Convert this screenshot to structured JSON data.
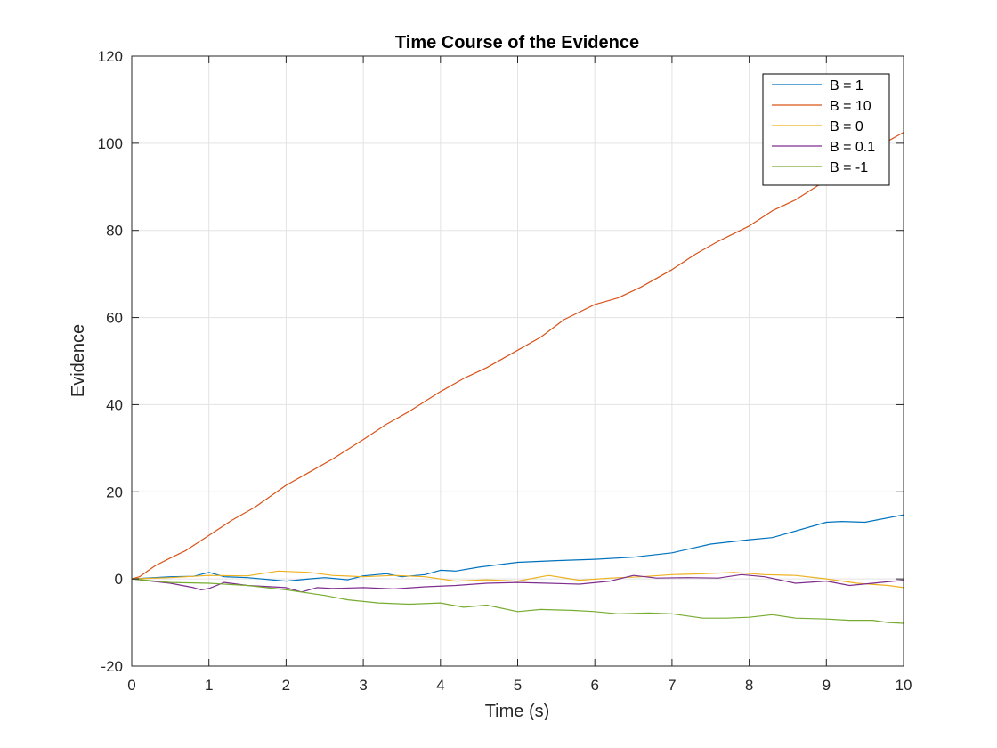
{
  "chart_data": {
    "type": "line",
    "title": "Time Course of the Evidence",
    "xlabel": "Time (s)",
    "ylabel": "Evidence",
    "xlim": [
      0,
      10
    ],
    "ylim": [
      -20,
      120
    ],
    "xticks": [
      0,
      1,
      2,
      3,
      4,
      5,
      6,
      7,
      8,
      9,
      10
    ],
    "yticks": [
      -20,
      0,
      20,
      40,
      60,
      80,
      100,
      120
    ],
    "grid": true,
    "legend_position": "top-right",
    "series": [
      {
        "name": "B = 1",
        "color": "#0072BD",
        "x": [
          0,
          0.5,
          0.8,
          1.0,
          1.2,
          1.5,
          2.0,
          2.3,
          2.5,
          2.8,
          3.0,
          3.3,
          3.5,
          3.8,
          4.0,
          4.2,
          4.5,
          5.0,
          5.5,
          6.0,
          6.5,
          7.0,
          7.5,
          8.0,
          8.3,
          8.5,
          9.0,
          9.2,
          9.5,
          10.0
        ],
        "y": [
          0,
          0.5,
          0.6,
          1.5,
          0.5,
          0.3,
          -0.5,
          0.0,
          0.3,
          -0.2,
          0.7,
          1.2,
          0.5,
          1.0,
          2.0,
          1.8,
          2.7,
          3.8,
          4.2,
          4.5,
          5.0,
          6.0,
          8.0,
          9.0,
          9.5,
          10.5,
          13.0,
          13.2,
          13.0,
          14.7
        ]
      },
      {
        "name": "B = 10",
        "color": "#D95319",
        "x": [
          0,
          0.1,
          0.3,
          0.5,
          0.7,
          1.0,
          1.3,
          1.6,
          2.0,
          2.3,
          2.6,
          3.0,
          3.3,
          3.6,
          4.0,
          4.3,
          4.6,
          5.0,
          5.3,
          5.6,
          6.0,
          6.3,
          6.6,
          7.0,
          7.3,
          7.6,
          8.0,
          8.3,
          8.6,
          9.0,
          9.3,
          9.6,
          10.0
        ],
        "y": [
          0,
          0.5,
          3.0,
          4.8,
          6.5,
          10.0,
          13.5,
          16.5,
          21.5,
          24.5,
          27.5,
          32.0,
          35.5,
          38.5,
          43.0,
          46.0,
          48.5,
          52.5,
          55.5,
          59.5,
          63.0,
          64.5,
          67.0,
          71.0,
          74.5,
          77.5,
          81.0,
          84.5,
          87.0,
          91.5,
          94.5,
          98.5,
          102.5
        ]
      },
      {
        "name": "B = 0",
        "color": "#EDB120",
        "x": [
          0,
          0.5,
          1.0,
          1.5,
          1.9,
          2.3,
          2.6,
          3.0,
          3.4,
          3.8,
          4.2,
          4.6,
          5.0,
          5.4,
          5.8,
          6.2,
          6.6,
          7.0,
          7.4,
          7.8,
          8.2,
          8.6,
          9.0,
          9.4,
          9.8,
          10.0
        ],
        "y": [
          0,
          0.3,
          0.8,
          0.7,
          1.8,
          1.5,
          0.8,
          0.5,
          0.8,
          0.5,
          -0.5,
          -0.2,
          -0.5,
          0.8,
          -0.3,
          0.2,
          0.5,
          1.0,
          1.2,
          1.5,
          1.0,
          0.8,
          0.0,
          -1.0,
          -1.5,
          -2.0
        ]
      },
      {
        "name": "B = 0.1",
        "color": "#7E2F8E",
        "x": [
          0,
          0.5,
          0.8,
          0.9,
          1.0,
          1.2,
          1.5,
          2.0,
          2.2,
          2.4,
          2.6,
          3.0,
          3.4,
          3.8,
          4.2,
          4.6,
          5.0,
          5.4,
          5.8,
          6.2,
          6.5,
          6.8,
          7.2,
          7.6,
          7.9,
          8.2,
          8.6,
          9.0,
          9.3,
          9.6,
          10.0
        ],
        "y": [
          0,
          -1.0,
          -2.0,
          -2.5,
          -2.2,
          -0.8,
          -1.5,
          -2.0,
          -3.0,
          -2.0,
          -2.2,
          -2.0,
          -2.3,
          -1.8,
          -1.5,
          -1.0,
          -0.8,
          -1.0,
          -1.2,
          -0.5,
          0.8,
          0.2,
          0.3,
          0.2,
          1.0,
          0.5,
          -1.0,
          -0.5,
          -1.5,
          -1.0,
          -0.3
        ]
      },
      {
        "name": "B = -1",
        "color": "#77AC30",
        "x": [
          0,
          0.5,
          1.0,
          1.5,
          2.0,
          2.5,
          2.8,
          3.2,
          3.6,
          4.0,
          4.3,
          4.6,
          5.0,
          5.3,
          5.7,
          6.0,
          6.3,
          6.7,
          7.0,
          7.4,
          7.7,
          8.0,
          8.3,
          8.6,
          9.0,
          9.3,
          9.6,
          9.8,
          10.0
        ],
        "y": [
          0,
          -0.8,
          -1.0,
          -1.5,
          -2.5,
          -3.8,
          -4.8,
          -5.5,
          -5.8,
          -5.5,
          -6.5,
          -6.0,
          -7.5,
          -7.0,
          -7.2,
          -7.5,
          -8.0,
          -7.8,
          -8.0,
          -9.0,
          -9.0,
          -8.8,
          -8.2,
          -9.0,
          -9.2,
          -9.5,
          -9.5,
          -10.0,
          -10.2
        ]
      }
    ]
  }
}
